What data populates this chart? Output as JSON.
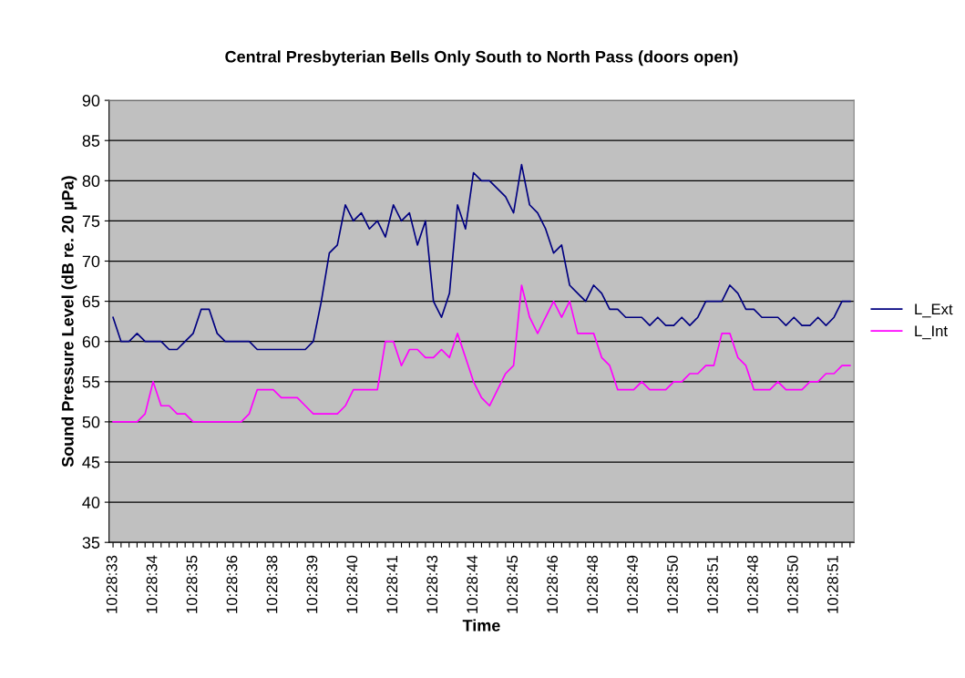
{
  "chart_data": {
    "type": "line",
    "title": "Central Presbyterian Bells Only South to North Pass (doors open)",
    "xlabel": "Time",
    "ylabel": "Sound Pressure Level (dB re. 20 µPa)",
    "categories": [
      "10:28:33",
      null,
      null,
      null,
      null,
      "10:28:34",
      null,
      null,
      null,
      null,
      "10:28:35",
      null,
      null,
      null,
      null,
      "10:28:36",
      null,
      null,
      null,
      null,
      "10:28:38",
      null,
      null,
      null,
      null,
      "10:28:39",
      null,
      null,
      null,
      null,
      "10:28:40",
      null,
      null,
      null,
      null,
      "10:28:41",
      null,
      null,
      null,
      null,
      "10:28:43",
      null,
      null,
      null,
      null,
      "10:28:44",
      null,
      null,
      null,
      null,
      "10:28:45",
      null,
      null,
      null,
      null,
      "10:28:46",
      null,
      null,
      null,
      null,
      "10:28:48",
      null,
      null,
      null,
      null,
      "10:28:49",
      null,
      null,
      null,
      null,
      "10:28:50",
      null,
      null,
      null,
      null,
      "10:28:51",
      null,
      null,
      null,
      null,
      "10:28:48",
      null,
      null,
      null,
      null,
      "10:28:50",
      null,
      null,
      null,
      null,
      "10:28:51",
      null,
      null
    ],
    "series": [
      {
        "name": "L_Ext",
        "color": "#000080",
        "values": [
          63,
          60,
          60,
          61,
          60,
          60,
          60,
          59,
          59,
          60,
          61,
          64,
          64,
          61,
          60,
          60,
          60,
          60,
          59,
          59,
          59,
          59,
          59,
          59,
          59,
          60,
          65,
          71,
          72,
          77,
          75,
          76,
          74,
          75,
          73,
          77,
          75,
          76,
          72,
          75,
          65,
          63,
          66,
          77,
          74,
          81,
          80,
          80,
          79,
          78,
          76,
          82,
          77,
          76,
          74,
          71,
          72,
          67,
          66,
          65,
          67,
          66,
          64,
          64,
          63,
          63,
          63,
          62,
          63,
          62,
          62,
          63,
          62,
          63,
          65,
          65,
          65,
          67,
          66,
          64,
          64,
          63,
          63,
          63,
          62,
          63,
          62,
          62,
          63,
          62,
          63,
          65,
          65
        ]
      },
      {
        "name": "L_Int",
        "color": "#ff00ff",
        "values": [
          50,
          50,
          50,
          50,
          51,
          55,
          52,
          52,
          51,
          51,
          50,
          50,
          50,
          50,
          50,
          50,
          50,
          51,
          54,
          54,
          54,
          53,
          53,
          53,
          52,
          51,
          51,
          51,
          51,
          52,
          54,
          54,
          54,
          54,
          60,
          60,
          57,
          59,
          59,
          58,
          58,
          59,
          58,
          61,
          58,
          55,
          53,
          52,
          54,
          56,
          57,
          67,
          63,
          61,
          63,
          65,
          63,
          65,
          61,
          61,
          61,
          58,
          57,
          54,
          54,
          54,
          55,
          54,
          54,
          54,
          55,
          55,
          56,
          56,
          57,
          57,
          61,
          61,
          58,
          57,
          54,
          54,
          54,
          55,
          54,
          54,
          54,
          55,
          55,
          56,
          56,
          57,
          57
        ]
      }
    ],
    "ylim": [
      35,
      90
    ],
    "yticks": [
      35,
      40,
      45,
      50,
      55,
      60,
      65,
      70,
      75,
      80,
      85,
      90
    ],
    "grid": "y",
    "legend": "right",
    "marker": "none",
    "line_style": "solid"
  }
}
